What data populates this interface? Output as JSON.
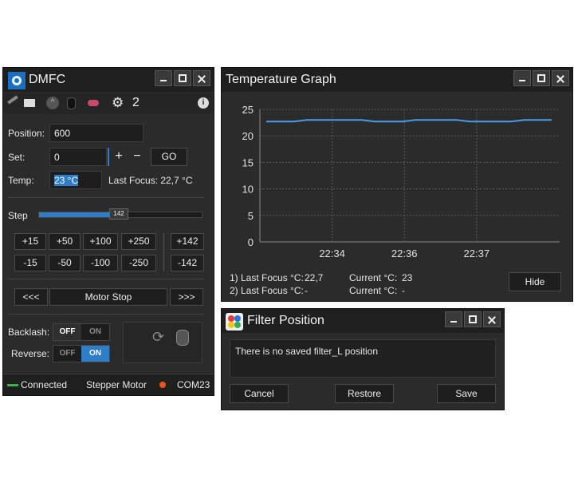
{
  "dmfc": {
    "title": "DMFC",
    "toolbar": {
      "count": "2"
    },
    "position": {
      "label": "Position:",
      "value": "600"
    },
    "set": {
      "label": "Set:",
      "value": "0",
      "plus": "+",
      "minus": "−",
      "go": "GO"
    },
    "temp": {
      "label": "Temp:",
      "value": "23 °C",
      "last_focus": "Last Focus: 22,7 °C"
    },
    "step": {
      "label": "Step",
      "value": "142",
      "fraction": 0.49
    },
    "steps_pos": [
      "+15",
      "+50",
      "+100",
      "+250",
      "+142"
    ],
    "steps_neg": [
      "-15",
      "-50",
      "-100",
      "-250",
      "-142"
    ],
    "motion": {
      "back": "<<<",
      "stop": "Motor Stop",
      "fwd": ">>>"
    },
    "backlash": {
      "label": "Backlash:",
      "off": "OFF",
      "on": "ON"
    },
    "reverse": {
      "label": "Reverse:",
      "off": "OFF",
      "on": "ON"
    },
    "status": {
      "connected": "Connected",
      "motor": "Stepper Motor",
      "port": "COM23"
    },
    "colors": {
      "accent": "#2e7dc6",
      "connected": "#3fb04f",
      "port_dot": "#e8541c"
    }
  },
  "graph": {
    "title": "Temperature Graph",
    "info": {
      "row1_label": "1) Last Focus °C:",
      "row1_value": "22,7",
      "row1_current_label": "Current  °C:",
      "row1_current_value": "23",
      "row2_label": "2) Last Focus °C:",
      "row2_value": "-",
      "row2_current_label": "Current  °C:",
      "row2_current_value": "-"
    },
    "hide": "Hide"
  },
  "chart_data": {
    "type": "line",
    "ylim": [
      0,
      25
    ],
    "yticks": [
      "0",
      "5",
      "10",
      "15",
      "20",
      "25"
    ],
    "xticks": [
      "22:34",
      "22:36",
      "22:37"
    ],
    "series": [
      {
        "values": [
          22.7,
          22.7,
          22.7,
          23.0,
          23.0,
          23.0,
          23.0,
          23.0,
          22.7,
          22.7,
          22.7,
          23.0,
          23.0,
          23.0,
          23.0,
          22.7,
          22.7,
          22.7,
          22.7,
          23.0,
          23.0,
          23.0
        ]
      }
    ],
    "color": "#4a9be8"
  },
  "filter": {
    "title": "Filter Position",
    "message": "There is no saved filter_L position",
    "cancel": "Cancel",
    "restore": "Restore",
    "save": "Save"
  }
}
